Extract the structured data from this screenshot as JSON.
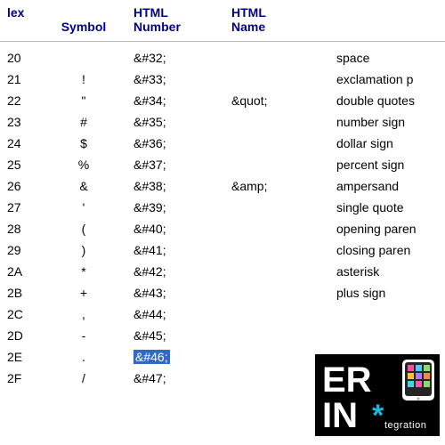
{
  "columns": {
    "hex_line": "lex",
    "symbol": "Symbol",
    "htmlnum_l1": "HTML",
    "htmlnum_l2": "Number",
    "htmlname_l1": "HTML",
    "htmlname_l2": "Name",
    "desc": ""
  },
  "rows": [
    {
      "hex": "20",
      "sym": " ",
      "num": "&#32;",
      "name": "",
      "desc": "space",
      "hi": false
    },
    {
      "hex": "21",
      "sym": "!",
      "num": "&#33;",
      "name": "",
      "desc": "exclamation p",
      "hi": false
    },
    {
      "hex": "22",
      "sym": "\"",
      "num": "&#34;",
      "name": "&quot;",
      "desc": "double quotes",
      "hi": false
    },
    {
      "hex": "23",
      "sym": "#",
      "num": "&#35;",
      "name": "",
      "desc": "number sign",
      "hi": false
    },
    {
      "hex": "24",
      "sym": "$",
      "num": "&#36;",
      "name": "",
      "desc": "dollar sign",
      "hi": false
    },
    {
      "hex": "25",
      "sym": "%",
      "num": "&#37;",
      "name": "",
      "desc": "percent sign",
      "hi": false
    },
    {
      "hex": "26",
      "sym": "&",
      "num": "&#38;",
      "name": "&amp;",
      "desc": "ampersand",
      "hi": false
    },
    {
      "hex": "27",
      "sym": "'",
      "num": "&#39;",
      "name": "",
      "desc": "single quote",
      "hi": false
    },
    {
      "hex": "28",
      "sym": "(",
      "num": "&#40;",
      "name": "",
      "desc": "opening paren",
      "hi": false
    },
    {
      "hex": "29",
      "sym": ")",
      "num": "&#41;",
      "name": "",
      "desc": "closing paren",
      "hi": false
    },
    {
      "hex": "2A",
      "sym": "*",
      "num": "&#42;",
      "name": "",
      "desc": "asterisk",
      "hi": false
    },
    {
      "hex": "2B",
      "sym": "+",
      "num": "&#43;",
      "name": "",
      "desc": "plus sign",
      "hi": false
    },
    {
      "hex": "2C",
      "sym": ",",
      "num": "&#44;",
      "name": "",
      "desc": "",
      "hi": false
    },
    {
      "hex": "2D",
      "sym": "-",
      "num": "&#45;",
      "name": "",
      "desc": "",
      "hi": false
    },
    {
      "hex": "2E",
      "sym": ".",
      "num": "&#46;",
      "name": "",
      "desc": "",
      "hi": true
    },
    {
      "hex": "2F",
      "sym": "/",
      "num": "&#47;",
      "name": "",
      "desc": "",
      "hi": false
    }
  ],
  "logo": {
    "line1": "ER",
    "line2": "IN",
    "sub": "tegration",
    "bg": "#000000",
    "text": "#ffffff",
    "accent": "#19b8e1",
    "tablet_border": "#ffffff",
    "tablet_fill": "#252525",
    "app_colors": [
      "#ff4da6",
      "#52c6ff",
      "#8ae06b",
      "#ffc233",
      "#b076ff",
      "#ff824d",
      "#4dd0e1",
      "#ef5da8",
      "#8cd867"
    ]
  }
}
